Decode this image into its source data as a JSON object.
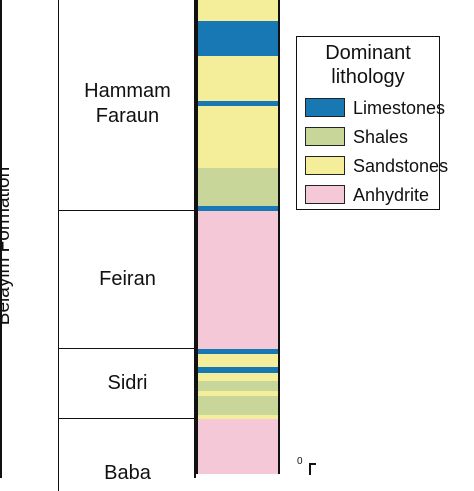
{
  "formation": {
    "name": "Belayim Formation"
  },
  "members": [
    {
      "name": "Hammam Faraun",
      "lines": [
        "Hammam",
        "Faraun"
      ]
    },
    {
      "name": "Feiran",
      "lines": [
        "Feiran"
      ]
    },
    {
      "name": "Sidri",
      "lines": [
        "Sidri"
      ]
    },
    {
      "name": "Baba",
      "lines": [
        "Baba"
      ]
    }
  ],
  "legend": {
    "title_line1": "Dominant",
    "title_line2": "lithology",
    "items": [
      {
        "label": "Limestones",
        "color": "#1878b4"
      },
      {
        "label": "Shales",
        "color": "#c9d69a"
      },
      {
        "label": "Sandstones",
        "color": "#f4ee9a"
      },
      {
        "label": "Anhydrite",
        "color": "#f4c8d6"
      }
    ]
  },
  "scale": {
    "zero_label": "0"
  }
}
